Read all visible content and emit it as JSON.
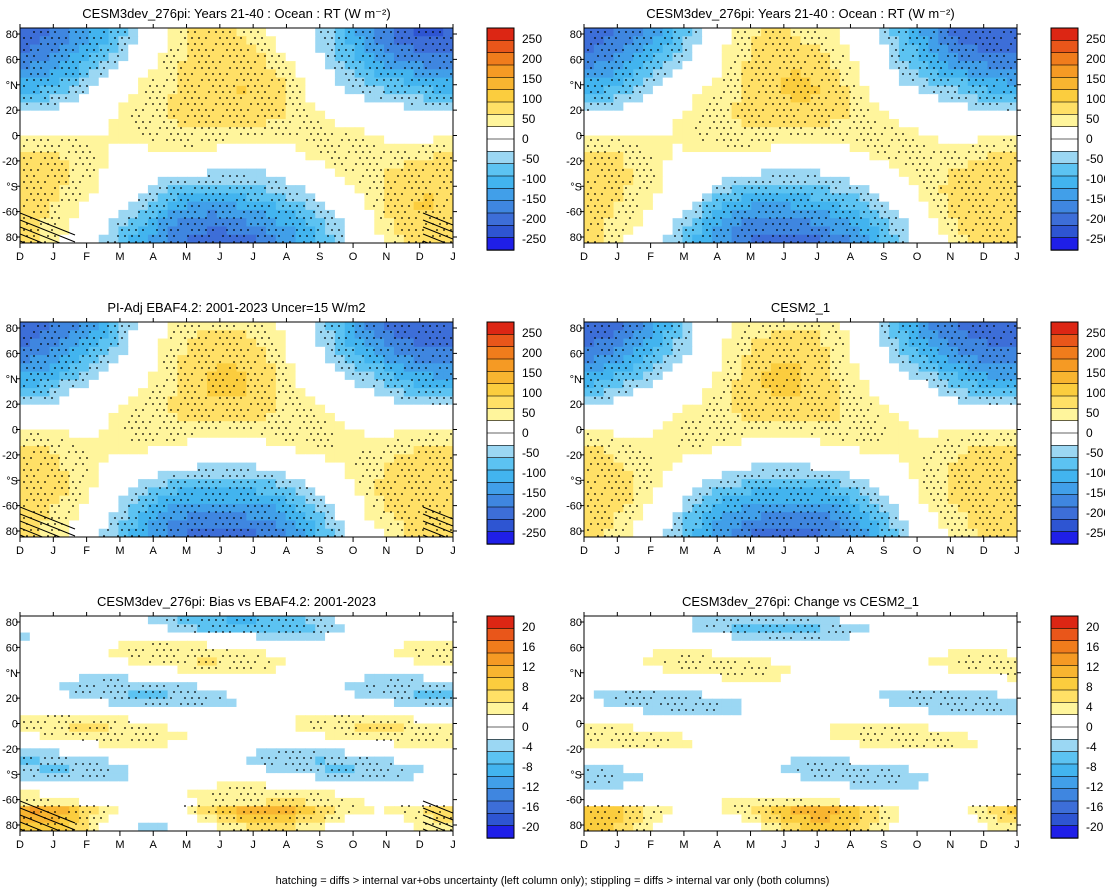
{
  "footnote": "hatching = diffs > internal var+obs uncertainty (left column only); stippling = diffs > internal var only (both columns)",
  "colors": {
    "blue_scale": [
      "#1f1fe8",
      "#2e55d2",
      "#3d6ed8",
      "#3f86e0",
      "#419fe9",
      "#42b4ef",
      "#5cc3f2",
      "#9bd7f3"
    ],
    "white": "#ffffff",
    "warm_scale": [
      "#fff59c",
      "#ffe066",
      "#fbcd3e",
      "#f8b530",
      "#f59a24",
      "#f07c1c",
      "#e9561a",
      "#dc2614"
    ],
    "stipple": "#000000"
  },
  "chart_data": [
    {
      "type": "heatmap",
      "title": "CESM3dev_276pi: Years 21-40 : Ocean : RT (W m⁻²)",
      "x_ticks": [
        "D",
        "J",
        "F",
        "M",
        "A",
        "M",
        "J",
        "J",
        "A",
        "S",
        "O",
        "N",
        "D",
        "J"
      ],
      "y_ticks": [
        "80",
        "60",
        "°N",
        "20",
        "0",
        "-20",
        "°S",
        "-60",
        "80"
      ],
      "colorbar": [
        "250",
        "200",
        "150",
        "100",
        "50",
        "0",
        "-50",
        "-100",
        "-150",
        "-200",
        "-250"
      ],
      "colorbar_unit": 50,
      "field": "rt",
      "hatched": true
    },
    {
      "type": "heatmap",
      "title": "CESM3dev_276pi: Years 21-40 : Ocean : RT (W m⁻²)",
      "x_ticks": [
        "D",
        "J",
        "F",
        "M",
        "A",
        "M",
        "J",
        "J",
        "A",
        "S",
        "O",
        "N",
        "D",
        "J"
      ],
      "y_ticks": [
        "80",
        "60",
        "°N",
        "20",
        "0",
        "-20",
        "°S",
        "-60",
        "80"
      ],
      "colorbar": [
        "250",
        "200",
        "150",
        "100",
        "50",
        "0",
        "-50",
        "-100",
        "-150",
        "-200",
        "-250"
      ],
      "colorbar_unit": 50,
      "field": "rt",
      "hatched": false
    },
    {
      "type": "heatmap",
      "title": "PI-Adj EBAF4.2: 2001-2023 Uncer=15 W/m2",
      "x_ticks": [
        "D",
        "J",
        "F",
        "M",
        "A",
        "M",
        "J",
        "J",
        "A",
        "S",
        "O",
        "N",
        "D",
        "J"
      ],
      "y_ticks": [
        "80",
        "60",
        "°N",
        "20",
        "0",
        "-20",
        "°S",
        "-60",
        "80"
      ],
      "colorbar": [
        "250",
        "200",
        "150",
        "100",
        "50",
        "0",
        "-50",
        "-100",
        "-150",
        "-200",
        "-250"
      ],
      "colorbar_unit": 50,
      "field": "rt",
      "hatched": true
    },
    {
      "type": "heatmap",
      "title": "CESM2_1",
      "x_ticks": [
        "D",
        "J",
        "F",
        "M",
        "A",
        "M",
        "J",
        "J",
        "A",
        "S",
        "O",
        "N",
        "D",
        "J"
      ],
      "y_ticks": [
        "80",
        "60",
        "°N",
        "20",
        "0",
        "-20",
        "°S",
        "-60",
        "80"
      ],
      "colorbar": [
        "250",
        "200",
        "150",
        "100",
        "50",
        "0",
        "-50",
        "-100",
        "-150",
        "-200",
        "-250"
      ],
      "colorbar_unit": 50,
      "field": "rt",
      "hatched": false
    },
    {
      "type": "heatmap",
      "title": "CESM3dev_276pi: Bias vs EBAF4.2: 2001-2023",
      "x_ticks": [
        "D",
        "J",
        "F",
        "M",
        "A",
        "M",
        "J",
        "J",
        "A",
        "S",
        "O",
        "N",
        "D",
        "J"
      ],
      "y_ticks": [
        "80",
        "60",
        "°N",
        "20",
        "0",
        "-20",
        "°S",
        "-60",
        "80"
      ],
      "colorbar": [
        "20",
        "16",
        "12",
        "8",
        "4",
        "0",
        "-4",
        "-8",
        "-12",
        "-16",
        "-20"
      ],
      "colorbar_unit": 4,
      "field": "bias",
      "hatched": true
    },
    {
      "type": "heatmap",
      "title": "CESM3dev_276pi: Change vs CESM2_1",
      "x_ticks": [
        "D",
        "J",
        "F",
        "M",
        "A",
        "M",
        "J",
        "J",
        "A",
        "S",
        "O",
        "N",
        "D",
        "J"
      ],
      "y_ticks": [
        "80",
        "60",
        "°N",
        "20",
        "0",
        "-20",
        "°S",
        "-60",
        "80"
      ],
      "colorbar": [
        "20",
        "16",
        "12",
        "8",
        "4",
        "0",
        "-4",
        "-8",
        "-12",
        "-16",
        "-20"
      ],
      "colorbar_unit": 4,
      "field": "change",
      "hatched": false
    }
  ]
}
